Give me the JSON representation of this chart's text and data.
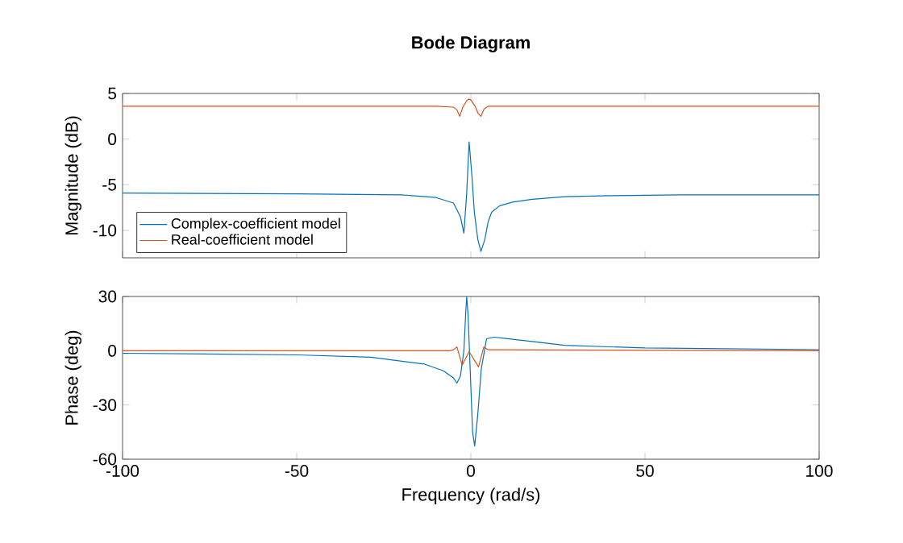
{
  "chart_data": [
    {
      "type": "line",
      "title": "Bode Diagram",
      "ylabel": "Magnitude (dB)",
      "xlim": [
        -100,
        100
      ],
      "xticks": [
        -100,
        -50,
        0,
        50,
        100
      ],
      "ylim": [
        -13,
        5
      ],
      "yticks": [
        -10,
        -5,
        0,
        5
      ],
      "tick_labels": "y",
      "legend": "bottom left",
      "series": [
        {
          "name": "Complex-coefficient model",
          "color": "#0072bd",
          "x": [
            -100,
            -50,
            -20,
            -10,
            -5,
            -3,
            -2,
            -1.2,
            -0.5,
            0.3,
            1,
            2,
            2.9,
            4,
            5,
            6,
            8.3,
            12,
            17.6,
            27,
            40,
            60,
            100
          ],
          "values": [
            -5.9,
            -6.0,
            -6.1,
            -6.4,
            -7.0,
            -8.5,
            -10.3,
            -6,
            -0.3,
            -4,
            -8,
            -11,
            -12.3,
            -11,
            -9,
            -8,
            -7.3,
            -6.9,
            -6.6,
            -6.3,
            -6.2,
            -6.1,
            -6.1
          ]
        },
        {
          "name": "Real-coefficient model",
          "color": "#d95319",
          "x": [
            -100,
            -10,
            -5,
            -4,
            -3.2,
            -2.3,
            -1.2,
            -0.5,
            0.2,
            1.2,
            2.1,
            2.9,
            3.8,
            5,
            100
          ],
          "values": [
            3.6,
            3.6,
            3.5,
            3.2,
            2.5,
            3.5,
            4.2,
            4.4,
            4.2,
            3.6,
            2.8,
            2.5,
            3.3,
            3.6,
            3.6
          ]
        }
      ]
    },
    {
      "type": "line",
      "xlabel": "Frequency (rad/s)",
      "ylabel": "Phase (deg)",
      "xlim": [
        -100,
        100
      ],
      "xticks": [
        -100,
        -50,
        0,
        50,
        100
      ],
      "ylim": [
        -60,
        30
      ],
      "yticks": [
        -60,
        -30,
        0,
        30
      ],
      "series": [
        {
          "color": "#0072bd",
          "x": [
            -100,
            -50,
            -28.7,
            -13.3,
            -8,
            -5,
            -4,
            -3,
            -2,
            -1.5,
            -1.2,
            -0.8,
            0,
            0.5,
            1.1,
            2,
            3,
            4.5,
            6.8,
            10,
            17.6,
            26.9,
            50,
            100
          ],
          "values": [
            -1.4,
            -2.3,
            -3.6,
            -7.4,
            -11,
            -15,
            -17.9,
            -14,
            0,
            20,
            30,
            20,
            -20,
            -45,
            -52.7,
            -35,
            -10,
            6.6,
            7.5,
            6.8,
            5.1,
            3.0,
            1.5,
            0.6
          ]
        },
        {
          "color": "#d95319",
          "x": [
            -100,
            -6,
            -5,
            -4,
            -2.5,
            -0.5,
            2.2,
            3.7,
            5,
            100
          ],
          "values": [
            0,
            0,
            0.5,
            2.1,
            -8,
            -0.5,
            -8.9,
            2,
            0.5,
            0
          ]
        }
      ]
    }
  ]
}
